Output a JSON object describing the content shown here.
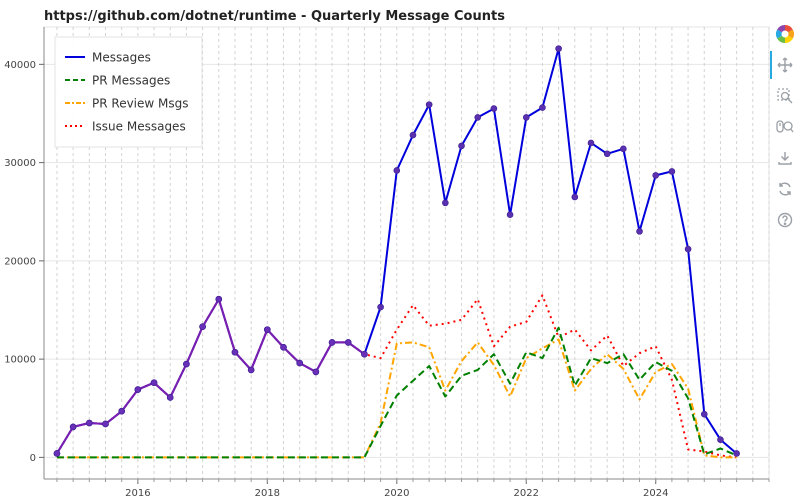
{
  "chart_data": {
    "type": "line",
    "title": "https://github.com/dotnet/runtime - Quarterly Message Counts",
    "xlabel": "",
    "ylabel": "",
    "x_range": [
      2014.55,
      2025.75
    ],
    "ylim": [
      -2200,
      43800
    ],
    "x_ticks": [
      2016,
      2018,
      2020,
      2022,
      2024
    ],
    "x_tick_labels": [
      "2016",
      "2018",
      "2020",
      "2022",
      "2024"
    ],
    "y_ticks": [
      0,
      10000,
      20000,
      30000,
      40000
    ],
    "y_tick_labels": [
      "0",
      "10000",
      "20000",
      "30000",
      "40000"
    ],
    "grid": true,
    "legend_position": "top-left",
    "x": [
      2014.75,
      2015.0,
      2015.25,
      2015.5,
      2015.75,
      2016.0,
      2016.25,
      2016.5,
      2016.75,
      2017.0,
      2017.25,
      2017.5,
      2017.75,
      2018.0,
      2018.25,
      2018.5,
      2018.75,
      2019.0,
      2019.25,
      2019.5,
      2019.75,
      2020.0,
      2020.25,
      2020.5,
      2020.75,
      2021.0,
      2021.25,
      2021.5,
      2021.75,
      2022.0,
      2022.25,
      2022.5,
      2022.75,
      2023.0,
      2023.25,
      2023.5,
      2023.75,
      2024.0,
      2024.25,
      2024.5,
      2024.75,
      2025.0,
      2025.25
    ],
    "series": [
      {
        "name": "Messages",
        "color": "#0000dd",
        "style": "solid",
        "markers": true,
        "values": [
          400,
          3100,
          3500,
          3400,
          4700,
          6900,
          7600,
          6100,
          9500,
          13300,
          16100,
          10700,
          8900,
          13000,
          11200,
          9600,
          8700,
          11700,
          11700,
          10500,
          15300,
          29200,
          32800,
          35900,
          25900,
          31700,
          34600,
          35500,
          24700,
          34600,
          35600,
          41600,
          26500,
          32000,
          30900,
          31400,
          23000,
          28700,
          29100,
          21200,
          4400,
          1800,
          400
        ]
      },
      {
        "name": "PR Messages",
        "color": "#008000",
        "style": "dashed",
        "markers": false,
        "values": [
          0,
          0,
          0,
          0,
          0,
          0,
          0,
          0,
          0,
          0,
          0,
          0,
          0,
          0,
          0,
          0,
          0,
          0,
          0,
          0,
          3200,
          6300,
          7800,
          9300,
          6200,
          8300,
          8900,
          10500,
          7500,
          10700,
          10100,
          13200,
          7300,
          10100,
          9600,
          10500,
          7900,
          9700,
          8800,
          6000,
          300,
          900,
          200
        ]
      },
      {
        "name": "PR Review Msgs",
        "color": "#ffa500",
        "style": "dashdot",
        "markers": false,
        "values": [
          0,
          0,
          0,
          0,
          0,
          0,
          0,
          0,
          0,
          0,
          0,
          0,
          0,
          0,
          0,
          0,
          0,
          0,
          0,
          0,
          3500,
          11600,
          11700,
          11200,
          6800,
          9800,
          11700,
          9400,
          6200,
          10100,
          11100,
          12000,
          6800,
          9000,
          10500,
          9000,
          5900,
          8700,
          9500,
          7000,
          200,
          0,
          0
        ]
      },
      {
        "name": "Issue Messages",
        "color": "#ff0000",
        "style": "dotted",
        "markers": false,
        "values": [
          400,
          3100,
          3500,
          3400,
          4700,
          6900,
          7600,
          6100,
          9500,
          13300,
          16100,
          10700,
          8900,
          13000,
          11200,
          9600,
          8700,
          11700,
          11700,
          10500,
          10100,
          13000,
          15500,
          13400,
          13600,
          14000,
          16100,
          11300,
          13300,
          13800,
          16500,
          12200,
          13000,
          10900,
          12400,
          9300,
          10600,
          11300,
          7900,
          800,
          600,
          200,
          0
        ]
      }
    ]
  },
  "toolbar": {
    "items": [
      {
        "name": "bokeh-logo-icon"
      },
      {
        "name": "pan-icon"
      },
      {
        "name": "box-zoom-icon"
      },
      {
        "name": "wheel-zoom-icon"
      },
      {
        "name": "save-icon"
      },
      {
        "name": "reset-icon"
      },
      {
        "name": "help-icon"
      }
    ]
  }
}
